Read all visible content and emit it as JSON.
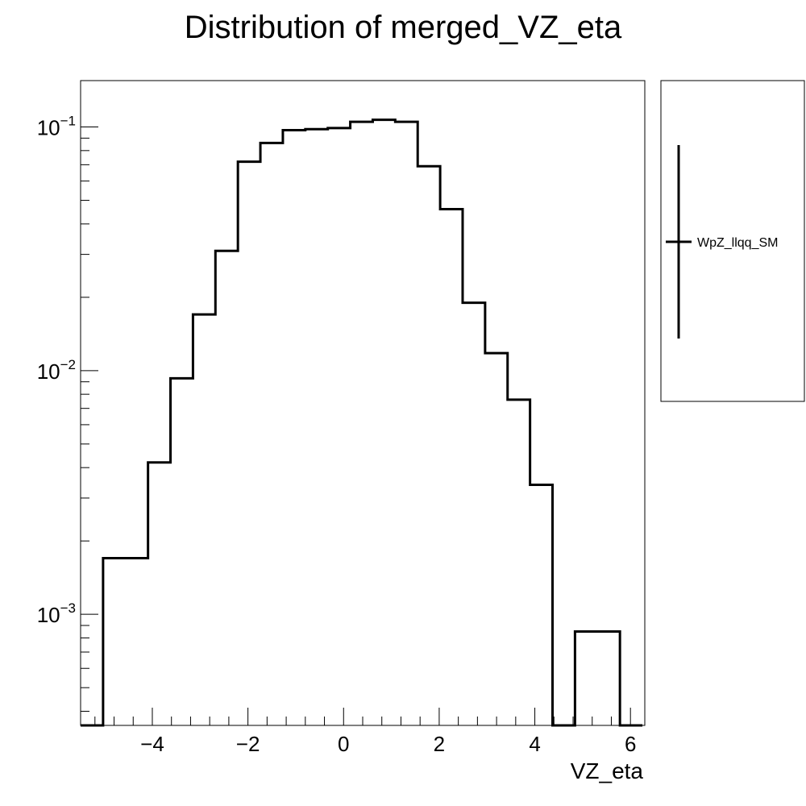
{
  "chart_data": {
    "type": "histogram",
    "title": "Distribution of merged_VZ_eta",
    "xlabel": "VZ_eta",
    "ylabel": "",
    "xlim": [
      -5.5,
      6.3
    ],
    "ylim": [
      0.00035,
      0.155
    ],
    "yscale": "log",
    "grid": false,
    "legend_position": "right",
    "x_ticks": [
      {
        "value": -4,
        "label": "−4"
      },
      {
        "value": -2,
        "label": "−2"
      },
      {
        "value": 0,
        "label": "0"
      },
      {
        "value": 2,
        "label": "2"
      },
      {
        "value": 4,
        "label": "4"
      },
      {
        "value": 6,
        "label": "6"
      }
    ],
    "y_ticks": [
      {
        "value": 0.1,
        "base": "10",
        "exp": "−1"
      },
      {
        "value": 0.01,
        "base": "10",
        "exp": "−2"
      },
      {
        "value": 0.001,
        "base": "10",
        "exp": "−3"
      }
    ],
    "bin_edges": [
      -5.5,
      -5.03,
      -4.56,
      -4.09,
      -3.62,
      -3.15,
      -2.68,
      -2.21,
      -1.74,
      -1.27,
      -0.8,
      -0.33,
      0.14,
      0.61,
      1.08,
      1.55,
      2.02,
      2.49,
      2.96,
      3.43,
      3.9,
      4.37,
      4.84,
      5.31,
      5.78,
      6.25
    ],
    "series": [
      {
        "name": "WpZ_llqq_SM",
        "color": "#000000",
        "values": [
          0,
          0.0017,
          0.0017,
          0.0042,
          0.0093,
          0.017,
          0.031,
          0.072,
          0.086,
          0.097,
          0.098,
          0.099,
          0.105,
          0.107,
          0.105,
          0.069,
          0.046,
          0.019,
          0.0118,
          0.0076,
          0.0034,
          0,
          0.00085,
          0.00085,
          0
        ]
      }
    ]
  }
}
